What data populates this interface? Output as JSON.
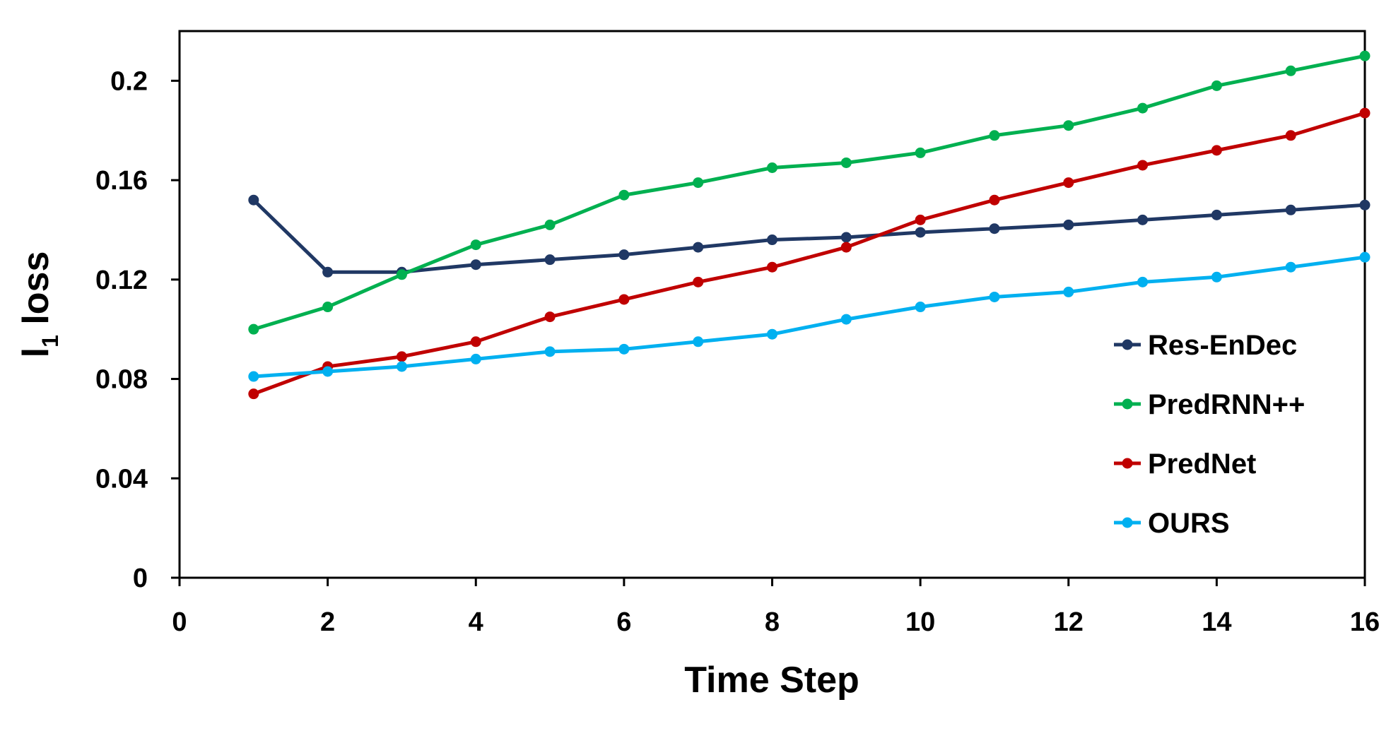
{
  "chart_data": {
    "type": "line",
    "xlabel": "Time Step",
    "ylabel_main": "l",
    "ylabel_sub": "1",
    "ylabel_rest": " loss",
    "xlim": [
      0,
      16
    ],
    "ylim": [
      0,
      0.22
    ],
    "x_ticks": [
      0,
      2,
      4,
      6,
      8,
      10,
      12,
      14,
      16
    ],
    "x_tick_labels": [
      "0",
      "2",
      "4",
      "6",
      "8",
      "10",
      "12",
      "14",
      "16"
    ],
    "y_ticks": [
      0,
      0.04,
      0.08,
      0.12,
      0.16,
      0.2
    ],
    "y_tick_labels": [
      "0",
      "0.04",
      "0.08",
      "0.12",
      "0.16",
      "0.2"
    ],
    "grid": false,
    "legend_position": "right",
    "x": [
      1,
      2,
      3,
      4,
      5,
      6,
      7,
      8,
      9,
      10,
      11,
      12,
      13,
      14,
      15,
      16
    ],
    "series": [
      {
        "name": "Res-EnDec",
        "color": "#203864",
        "values": [
          0.152,
          0.123,
          0.123,
          0.126,
          0.128,
          0.13,
          0.133,
          0.136,
          0.137,
          0.139,
          0.1405,
          0.142,
          0.144,
          0.146,
          0.148,
          0.15
        ]
      },
      {
        "name": "PredRNN++",
        "color": "#00B050",
        "values": [
          0.1,
          0.109,
          0.122,
          0.134,
          0.142,
          0.154,
          0.159,
          0.165,
          0.167,
          0.171,
          0.178,
          0.182,
          0.189,
          0.198,
          0.204,
          0.21
        ]
      },
      {
        "name": "PredNet",
        "color": "#C00000",
        "values": [
          0.074,
          0.085,
          0.089,
          0.095,
          0.105,
          0.112,
          0.119,
          0.125,
          0.133,
          0.144,
          0.152,
          0.159,
          0.166,
          0.172,
          0.178,
          0.187
        ]
      },
      {
        "name": "OURS",
        "color": "#00B0F0",
        "values": [
          0.081,
          0.083,
          0.085,
          0.088,
          0.091,
          0.092,
          0.095,
          0.098,
          0.104,
          0.109,
          0.113,
          0.115,
          0.119,
          0.121,
          0.125,
          0.129
        ]
      }
    ]
  }
}
